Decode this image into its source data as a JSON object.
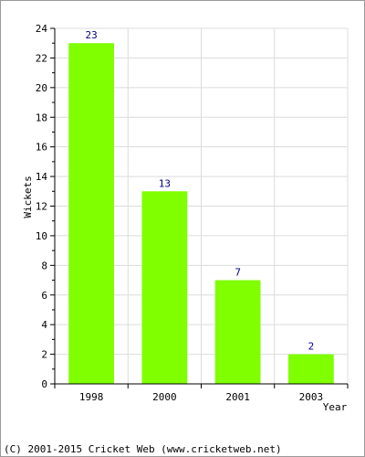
{
  "chart_data": {
    "type": "bar",
    "categories": [
      "1998",
      "2000",
      "2001",
      "2003"
    ],
    "values": [
      23,
      13,
      7,
      2
    ],
    "data_labels": [
      "23",
      "13",
      "7",
      "2"
    ],
    "title": "",
    "xlabel": "Year",
    "ylabel": "Wickets",
    "ylim": [
      0,
      24
    ],
    "y_ticks": [
      "0",
      "2",
      "4",
      "6",
      "8",
      "10",
      "12",
      "14",
      "16",
      "18",
      "20",
      "22",
      "24"
    ],
    "grid": true,
    "legend": "none",
    "bar_color": "#7fff00",
    "label_color": "#000080"
  },
  "footer": {
    "text": "(C) 2001-2015 Cricket Web (www.cricketweb.net)"
  }
}
